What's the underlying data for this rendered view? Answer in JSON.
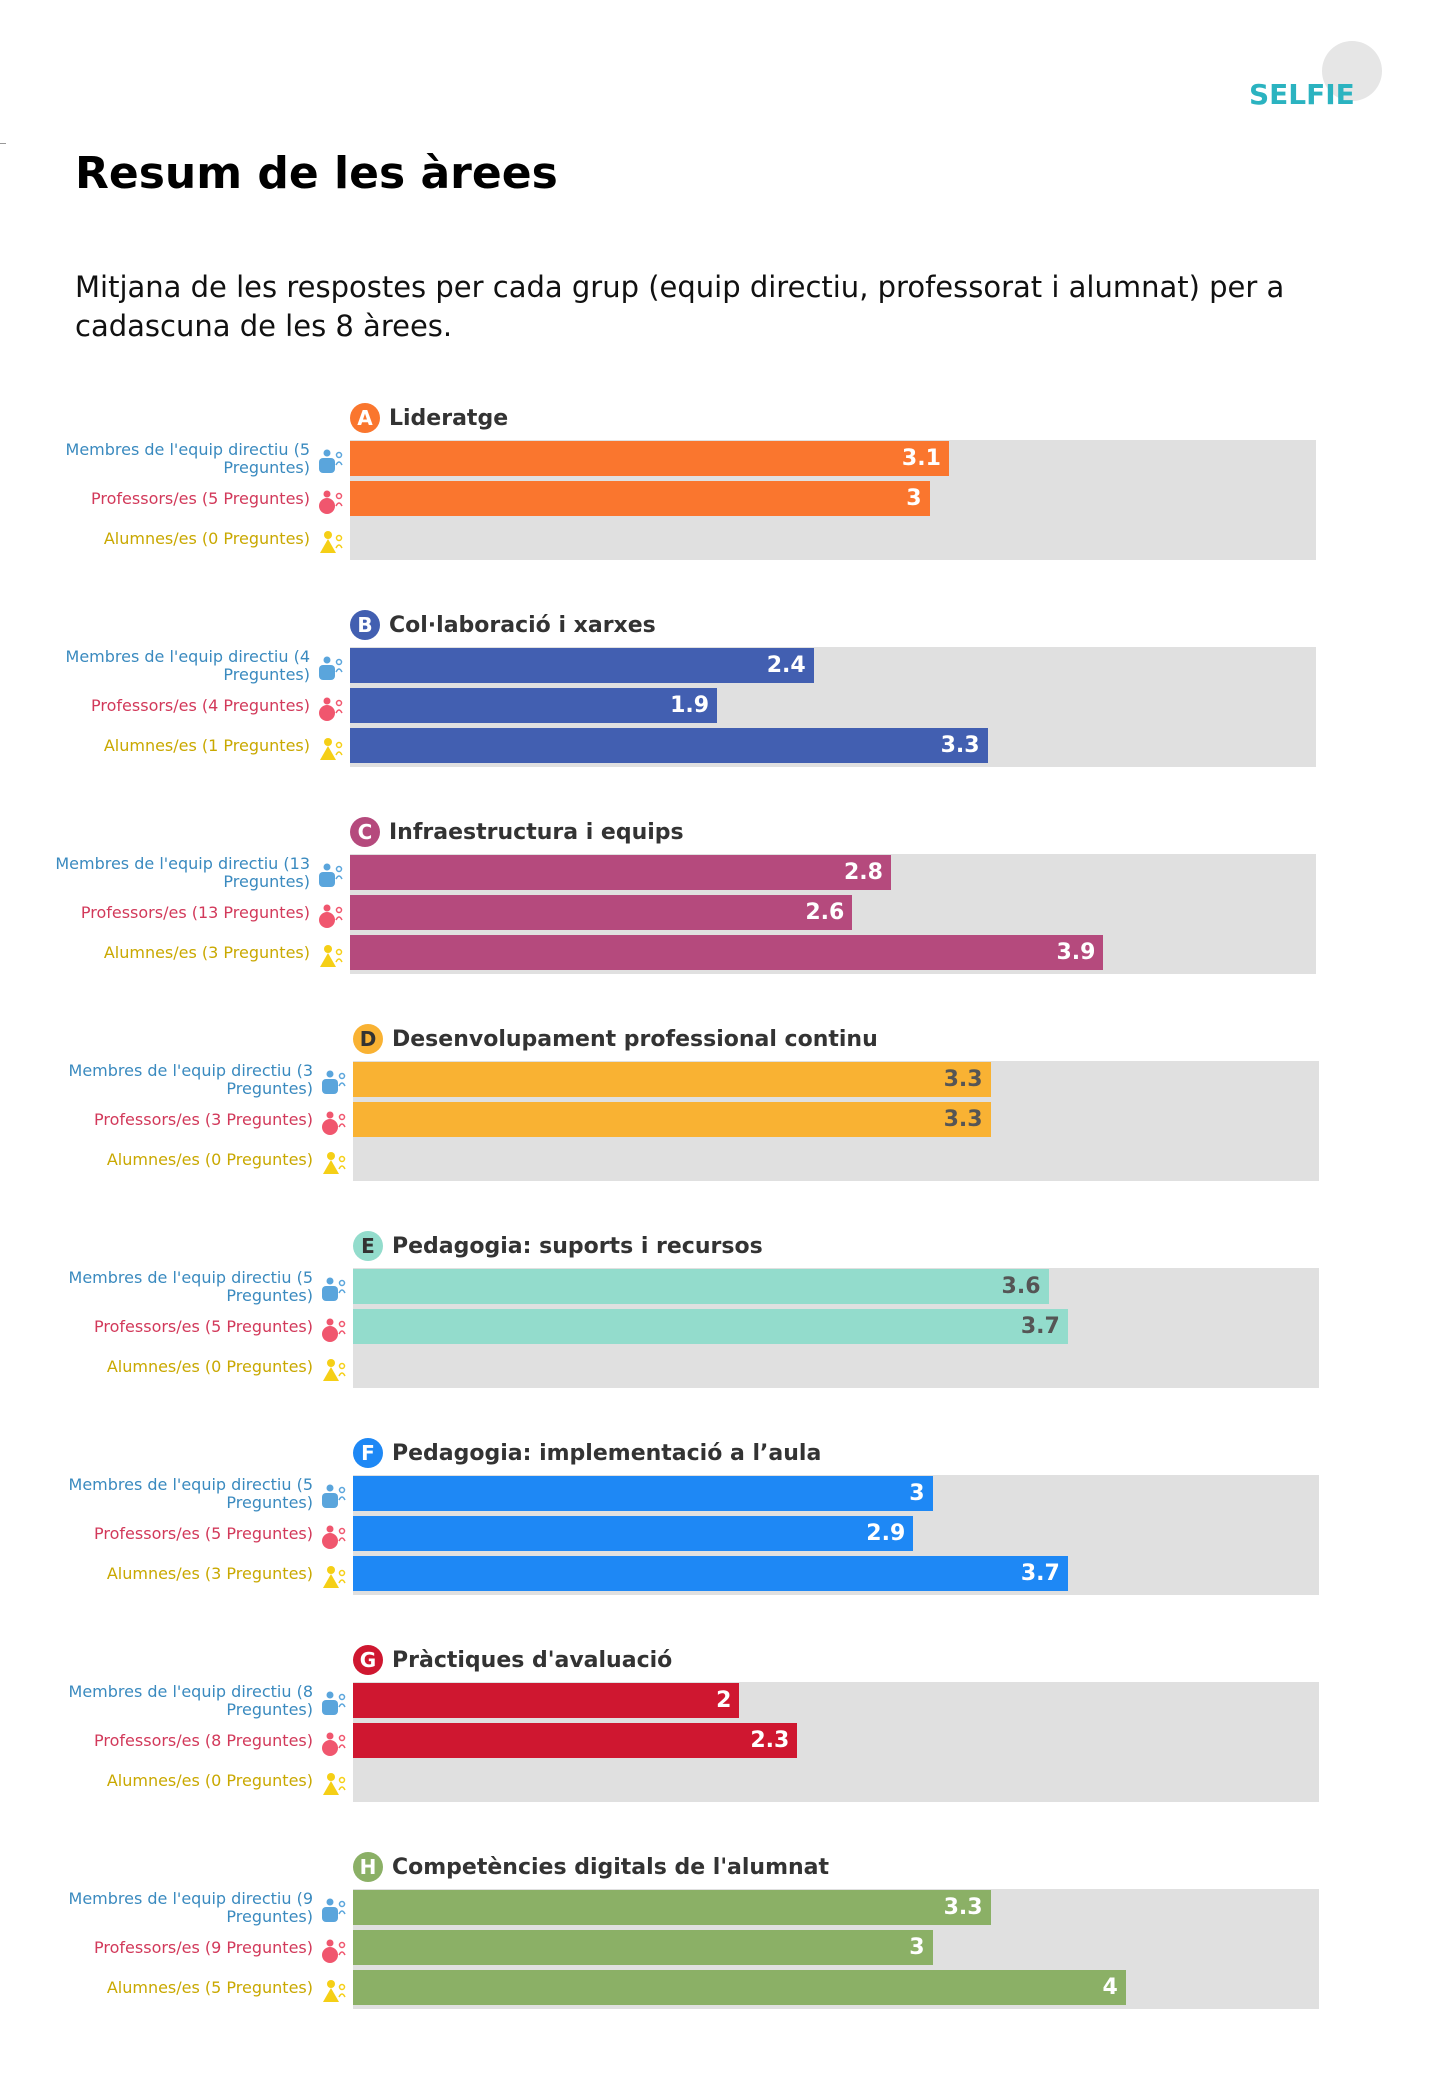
{
  "header": {
    "logo_text": "SELFIE",
    "title": "Resum de les àrees",
    "subtitle": "Mitjana de les respostes per cada grup (equip directiu, professorat i alumnat) per a cadascuna de les 8 àrees."
  },
  "groups": [
    {
      "key": "directiu",
      "icon": "school-leaders-icon",
      "color": "#3a8abf"
    },
    {
      "key": "professorat",
      "icon": "teachers-icon",
      "color": "#d2395a"
    },
    {
      "key": "alumnat",
      "icon": "students-icon",
      "color": "#c9a800"
    }
  ],
  "chart_data": {
    "type": "bar",
    "orientation": "horizontal",
    "title": "Resum de les àrees",
    "xlim": [
      0,
      5
    ],
    "grid": false,
    "areas": [
      {
        "letter": "A",
        "name": "Lideratge",
        "color": "#fa762e",
        "text_color": "#ffffff",
        "rows": [
          {
            "label": "Membres de l'equip directiu (5 Preguntes)",
            "value": 3.1,
            "display": "3.1"
          },
          {
            "label": "Professors/es (5 Preguntes)",
            "value": 3.0,
            "display": "3"
          },
          {
            "label": "Alumnes/es (0 Preguntes)",
            "value": null,
            "display": ""
          }
        ]
      },
      {
        "letter": "B",
        "name": "Col·laboració i xarxes",
        "color": "#425fb1",
        "text_color": "#ffffff",
        "rows": [
          {
            "label": "Membres de l'equip directiu (4 Preguntes)",
            "value": 2.4,
            "display": "2.4"
          },
          {
            "label": "Professors/es (4 Preguntes)",
            "value": 1.9,
            "display": "1.9"
          },
          {
            "label": "Alumnes/es (1 Preguntes)",
            "value": 3.3,
            "display": "3.3"
          }
        ]
      },
      {
        "letter": "C",
        "name": "Infraestructura i equips",
        "color": "#b54a7d",
        "text_color": "#ffffff",
        "rows": [
          {
            "label": "Membres de l'equip directiu (13 Preguntes)",
            "value": 2.8,
            "display": "2.8"
          },
          {
            "label": "Professors/es (13 Preguntes)",
            "value": 2.6,
            "display": "2.6"
          },
          {
            "label": "Alumnes/es (3 Preguntes)",
            "value": 3.9,
            "display": "3.9"
          }
        ]
      },
      {
        "letter": "D",
        "name": "Desenvolupament professional continu",
        "color": "#f9b233",
        "text_color": "#555555",
        "rows": [
          {
            "label": "Membres de l'equip directiu (3 Preguntes)",
            "value": 3.3,
            "display": "3.3"
          },
          {
            "label": "Professors/es (3 Preguntes)",
            "value": 3.3,
            "display": "3.3"
          },
          {
            "label": "Alumnes/es (0 Preguntes)",
            "value": null,
            "display": ""
          }
        ]
      },
      {
        "letter": "E",
        "name": "Pedagogia: suports i recursos",
        "color": "#93dccc",
        "text_color": "#555555",
        "rows": [
          {
            "label": "Membres de l'equip directiu (5 Preguntes)",
            "value": 3.6,
            "display": "3.6"
          },
          {
            "label": "Professors/es (5 Preguntes)",
            "value": 3.7,
            "display": "3.7"
          },
          {
            "label": "Alumnes/es (0 Preguntes)",
            "value": null,
            "display": ""
          }
        ]
      },
      {
        "letter": "F",
        "name": "Pedagogia: implementació a l’aula",
        "color": "#1e88f5",
        "text_color": "#ffffff",
        "rows": [
          {
            "label": "Membres de l'equip directiu (5 Preguntes)",
            "value": 3.0,
            "display": "3"
          },
          {
            "label": "Professors/es (5 Preguntes)",
            "value": 2.9,
            "display": "2.9"
          },
          {
            "label": "Alumnes/es (3 Preguntes)",
            "value": 3.7,
            "display": "3.7"
          }
        ]
      },
      {
        "letter": "G",
        "name": "Pràctiques d'avaluació",
        "color": "#cf1730",
        "text_color": "#ffffff",
        "rows": [
          {
            "label": "Membres de l'equip directiu (8 Preguntes)",
            "value": 2.0,
            "display": "2"
          },
          {
            "label": "Professors/es (8 Preguntes)",
            "value": 2.3,
            "display": "2.3"
          },
          {
            "label": "Alumnes/es (0 Preguntes)",
            "value": null,
            "display": ""
          }
        ]
      },
      {
        "letter": "H",
        "name": "Competències digitals de l'alumnat",
        "color": "#8bb066",
        "text_color": "#ffffff",
        "rows": [
          {
            "label": "Membres de l'equip directiu (9 Preguntes)",
            "value": 3.3,
            "display": "3.3"
          },
          {
            "label": "Professors/es (9 Preguntes)",
            "value": 3.0,
            "display": "3"
          },
          {
            "label": "Alumnes/es (5 Preguntes)",
            "value": 4.0,
            "display": "4"
          }
        ]
      }
    ]
  }
}
